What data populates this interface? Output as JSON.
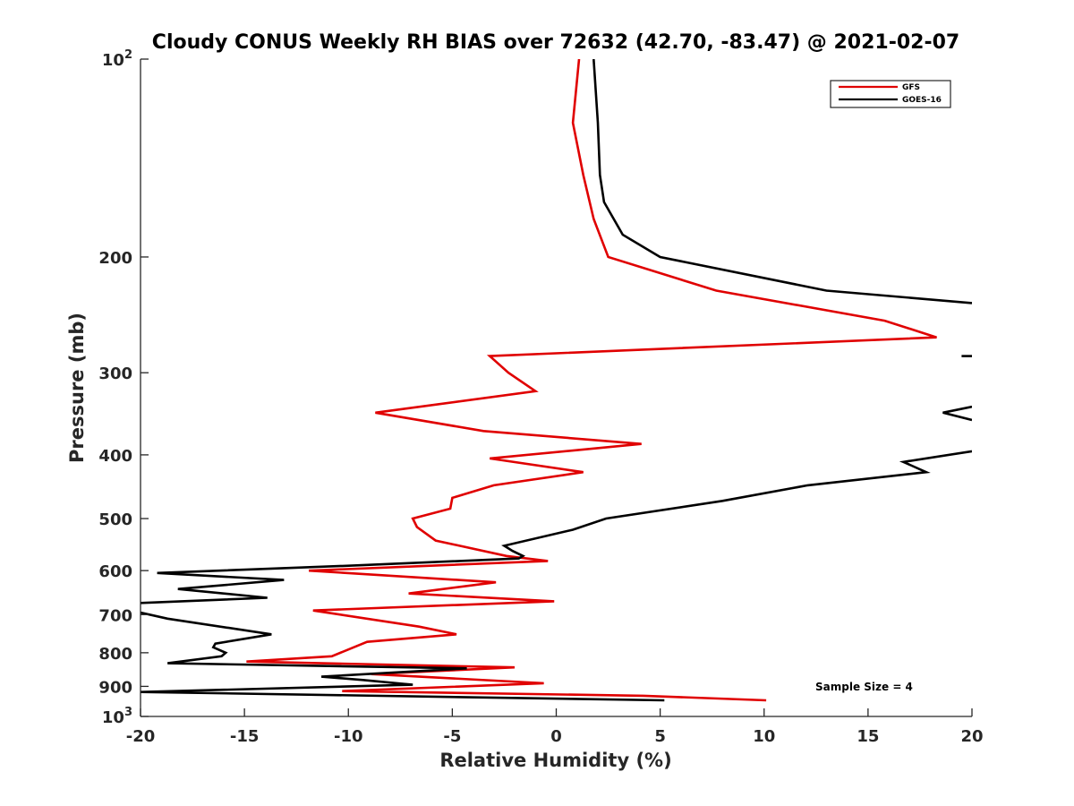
{
  "chart_data": {
    "type": "line",
    "title": "Cloudy CONUS Weekly RH BIAS over 72632 (42.70, -83.47) @ 2021-02-07",
    "xlabel": "Relative Humidity (%)",
    "ylabel": "Pressure (mb)",
    "xlim": [
      -20,
      20
    ],
    "ylim": [
      100,
      1000
    ],
    "y_scale": "log",
    "y_reversed": true,
    "x_ticks": [
      -20,
      -15,
      -10,
      -5,
      0,
      5,
      10,
      15,
      20
    ],
    "y_ticks": [
      {
        "value": 100,
        "label": "10",
        "sup": "2"
      },
      {
        "value": 200,
        "label": "200",
        "sup": ""
      },
      {
        "value": 300,
        "label": "300",
        "sup": ""
      },
      {
        "value": 400,
        "label": "400",
        "sup": ""
      },
      {
        "value": 500,
        "label": "500",
        "sup": ""
      },
      {
        "value": 600,
        "label": "600",
        "sup": ""
      },
      {
        "value": 700,
        "label": "700",
        "sup": ""
      },
      {
        "value": 800,
        "label": "800",
        "sup": ""
      },
      {
        "value": 900,
        "label": "900",
        "sup": ""
      },
      {
        "value": 1000,
        "label": "10",
        "sup": "3"
      }
    ],
    "grid": false,
    "legend_position": "top-right",
    "annotation": "Sample Size = 4",
    "series": [
      {
        "name": "GFS",
        "color": "#e00000",
        "points": [
          [
            1.1,
            100
          ],
          [
            0.8,
            125
          ],
          [
            1.3,
            150
          ],
          [
            1.8,
            175
          ],
          [
            2.5,
            200
          ],
          [
            7.7,
            225
          ],
          [
            15.8,
            250
          ],
          [
            18.3,
            265
          ],
          [
            -3.2,
            283
          ],
          [
            -2.3,
            300
          ],
          [
            -1.0,
            320
          ],
          [
            -8.7,
            345
          ],
          [
            -3.5,
            368
          ],
          [
            4.1,
            385
          ],
          [
            -3.2,
            405
          ],
          [
            1.3,
            425
          ],
          [
            -3.0,
            445
          ],
          [
            -5.0,
            465
          ],
          [
            -5.1,
            483
          ],
          [
            -6.9,
            500
          ],
          [
            -6.7,
            515
          ],
          [
            -5.8,
            540
          ],
          [
            -2.4,
            570
          ],
          [
            -0.4,
            580
          ],
          [
            -11.9,
            600
          ],
          [
            -2.9,
            625
          ],
          [
            -7.1,
            650
          ],
          [
            -0.1,
            668
          ],
          [
            -11.7,
            690
          ],
          [
            -6.6,
            730
          ],
          [
            -4.8,
            750
          ],
          [
            -9.1,
            770
          ],
          [
            -10.8,
            810
          ],
          [
            -14.9,
            825
          ],
          [
            -2.0,
            842
          ],
          [
            -8.9,
            862
          ],
          [
            -0.6,
            890
          ],
          [
            -10.3,
            915
          ],
          [
            4.2,
            930
          ],
          [
            10.1,
            945
          ]
        ]
      },
      {
        "name": "GOES-16",
        "color": "#000000",
        "segments": [
          [
            [
              1.8,
              100
            ],
            [
              2.0,
              125
            ],
            [
              2.1,
              150
            ],
            [
              2.3,
              165
            ],
            [
              3.2,
              185
            ],
            [
              5.0,
              200
            ],
            [
              13.0,
              225
            ],
            [
              20.0,
              235
            ]
          ],
          [
            [
              19.5,
              283
            ],
            [
              20.0,
              283
            ]
          ],
          [
            [
              20.0,
              338
            ],
            [
              18.6,
              345
            ],
            [
              20.0,
              354
            ]
          ],
          [
            [
              20.0,
              395
            ],
            [
              16.7,
              410
            ],
            [
              17.8,
              425
            ],
            [
              12.1,
              445
            ],
            [
              8.0,
              470
            ],
            [
              2.4,
              500
            ],
            [
              0.8,
              520
            ],
            [
              -2.5,
              550
            ],
            [
              -2.1,
              560
            ],
            [
              -1.6,
              570
            ],
            [
              -1.8,
              575
            ],
            [
              -10.1,
              590
            ],
            [
              -19.2,
              605
            ],
            [
              -13.1,
              620
            ],
            [
              -18.2,
              640
            ],
            [
              -13.9,
              660
            ],
            [
              -20.0,
              672
            ]
          ],
          [
            [
              -20.0,
              695
            ],
            [
              -18.7,
              710
            ],
            [
              -13.7,
              750
            ],
            [
              -16.4,
              775
            ],
            [
              -16.5,
              785
            ],
            [
              -15.9,
              800
            ],
            [
              -16.1,
              810
            ],
            [
              -18.7,
              830
            ],
            [
              -4.3,
              845
            ],
            [
              -11.3,
              870
            ],
            [
              -9.3,
              880
            ],
            [
              -6.9,
              895
            ],
            [
              -20.0,
              918
            ],
            [
              5.2,
              945
            ]
          ]
        ]
      }
    ]
  }
}
